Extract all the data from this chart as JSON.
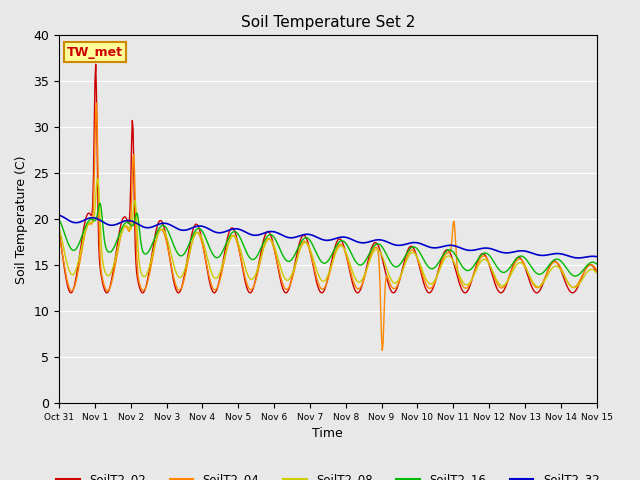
{
  "title": "Soil Temperature Set 2",
  "xlabel": "Time",
  "ylabel": "Soil Temperature (C)",
  "ylim": [
    0,
    40
  ],
  "fig_bg": "#e8e8e8",
  "plot_bg": "#e8e8e8",
  "annotation_text": "TW_met",
  "annotation_bg": "#ffff99",
  "annotation_border": "#cc8800",
  "series_colors": {
    "SoilT2_02": "#cc0000",
    "SoilT2_04": "#ff8800",
    "SoilT2_08": "#cccc00",
    "SoilT2_16": "#00bb00",
    "SoilT2_32": "#0000cc"
  },
  "tick_labels": [
    "Oct 31",
    "Nov 1",
    "Nov 2",
    "Nov 3",
    "Nov 4",
    "Nov 5",
    "Nov 6",
    "Nov 7",
    "Nov 8",
    "Nov 9",
    "Nov 10",
    "Nov 11",
    "Nov 12",
    "Nov 13",
    "Nov 14",
    "Nov 15"
  ],
  "yticks": [
    0,
    5,
    10,
    15,
    20,
    25,
    30,
    35,
    40
  ]
}
